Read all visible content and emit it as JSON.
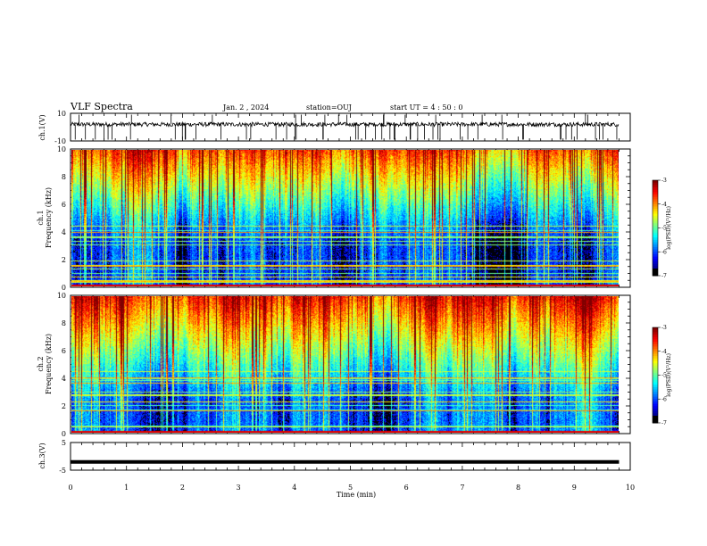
{
  "header": {
    "title": "VLF Spectra",
    "date": "Jan. 2 , 2024",
    "station": "station=OUJ",
    "start": "start UT =  4 : 50 : 0"
  },
  "chart_data": [
    {
      "type": "line",
      "ylabel": "ch.1(V)",
      "ylim": [
        -10,
        10
      ],
      "yticks": [
        "10",
        "-10"
      ],
      "xlim": [
        0,
        10
      ],
      "series": [
        {
          "baseline": 2,
          "noise_amplitude": 1.5,
          "color": "#000000"
        }
      ]
    },
    {
      "type": "heatmap",
      "ylabel": "ch.1\nFrequency (kHz)",
      "ylabel_lines": [
        "ch.1",
        "Frequency (kHz)"
      ],
      "ylim": [
        0,
        10
      ],
      "yticks": [
        "0",
        "2",
        "4",
        "6",
        "8",
        "10"
      ],
      "xlim": [
        0,
        10
      ],
      "colorbar": {
        "label": "log(PSD)(V²/Hz)",
        "ticks": [
          "-3",
          "-4",
          "-5",
          "-6",
          "-7"
        ],
        "range": [
          -7,
          -3
        ]
      }
    },
    {
      "type": "heatmap",
      "ylabel": "ch.2\nFrequency (kHz)",
      "ylabel_lines": [
        "ch.2",
        "Frequency (kHz)"
      ],
      "ylim": [
        0,
        10
      ],
      "yticks": [
        "0",
        "2",
        "4",
        "6",
        "8",
        "10"
      ],
      "xlim": [
        0,
        10
      ],
      "colorbar": {
        "label": "log(PSD)(V²/Hz)",
        "ticks": [
          "-3",
          "-4",
          "-5",
          "-6",
          "-7"
        ],
        "range": [
          -7,
          -3
        ]
      }
    },
    {
      "type": "line",
      "ylabel": "ch.3(V)",
      "ylim": [
        -5,
        5
      ],
      "yticks": [
        "5",
        "-5"
      ],
      "xlim": [
        0,
        10
      ],
      "series": [
        {
          "constant": -2,
          "color": "#000000"
        }
      ]
    }
  ],
  "xaxis": {
    "label": "Time (min)",
    "ticks": [
      "0",
      "1",
      "2",
      "3",
      "4",
      "5",
      "6",
      "7",
      "8",
      "9",
      "10"
    ]
  },
  "colors": {
    "axis": "#000000",
    "background": "#ffffff"
  }
}
